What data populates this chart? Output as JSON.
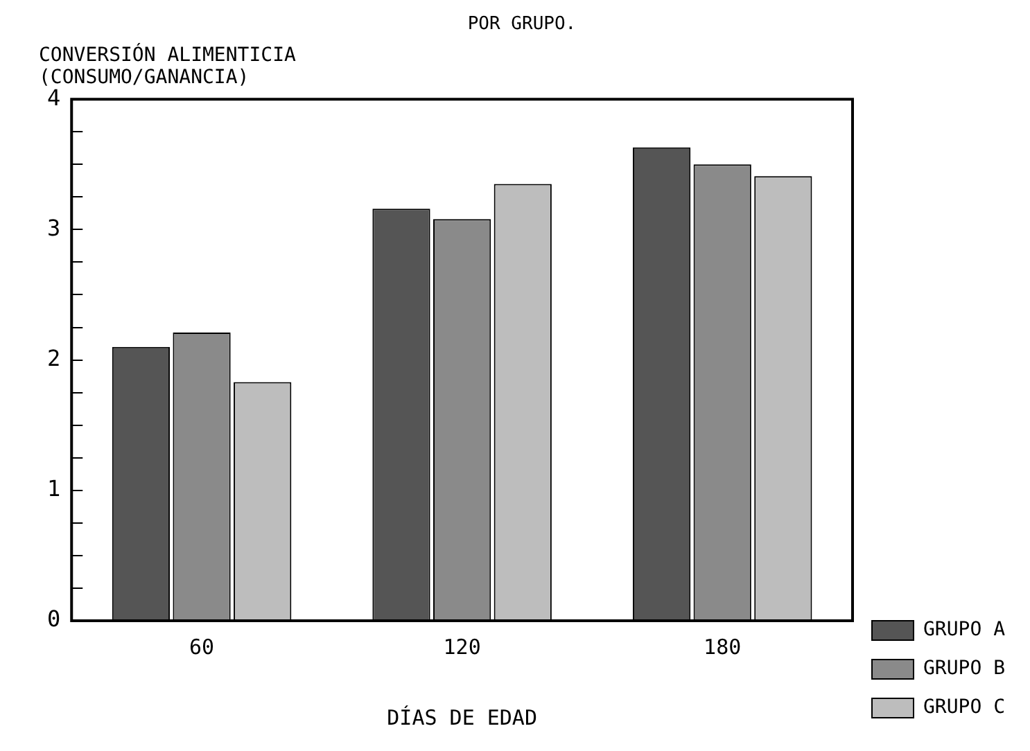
{
  "chart_data": {
    "type": "bar",
    "title": "POR GRUPO.",
    "ylabel": "CONVERSIÓN ALIMENTICIA\n(CONSUMO/GANANCIA)",
    "xlabel": "DÍAS DE EDAD",
    "categories": [
      "60",
      "120",
      "180"
    ],
    "series": [
      {
        "name": "GRUPO A",
        "color": "#555555",
        "values": [
          2.1,
          3.16,
          3.63
        ]
      },
      {
        "name": "GRUPO B",
        "color": "#8a8a8a",
        "values": [
          2.21,
          3.08,
          3.5
        ]
      },
      {
        "name": "GRUPO C",
        "color": "#bdbdbd",
        "values": [
          1.83,
          3.35,
          3.41
        ]
      }
    ],
    "ylim": [
      0,
      4
    ],
    "yticks": [
      0,
      {
        "value": 0.25,
        "label": null
      },
      {
        "value": 0.5,
        "label": null
      },
      {
        "value": 0.75,
        "label": null
      },
      1,
      {
        "value": 1.25,
        "label": null
      },
      {
        "value": 1.5,
        "label": null
      },
      {
        "value": 1.75,
        "label": null
      },
      2,
      {
        "value": 2.25,
        "label": null
      },
      {
        "value": 2.5,
        "label": null
      },
      {
        "value": 2.75,
        "label": null
      },
      3,
      {
        "value": 3.25,
        "label": null
      },
      {
        "value": 3.5,
        "label": null
      },
      {
        "value": 3.75,
        "label": null
      },
      4
    ],
    "grid": false,
    "legend": "bottom right"
  }
}
